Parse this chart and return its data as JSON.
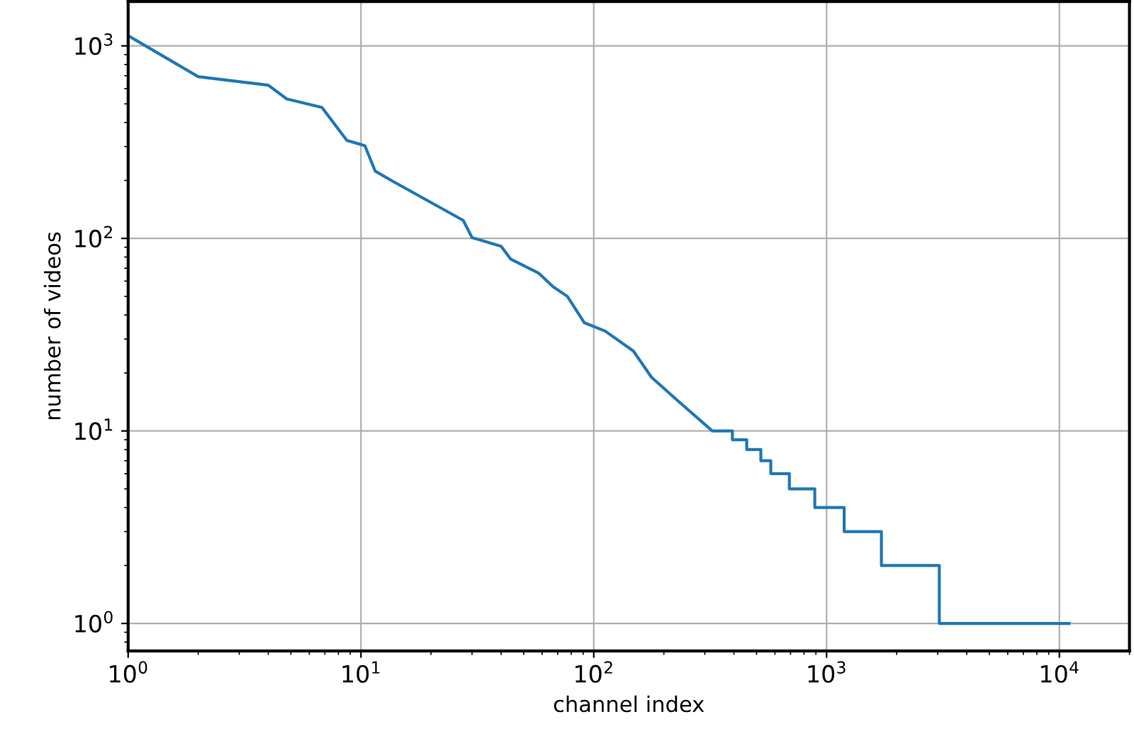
{
  "chart_data": {
    "type": "line",
    "xlabel": "channel index",
    "ylabel": "number of videos",
    "log": "xy",
    "grid": true,
    "marker": "none",
    "line_style": "solid",
    "xlim": [
      1,
      20000
    ],
    "ylim": [
      0.72,
      1700
    ],
    "xticks": [
      {
        "value": 1,
        "label": "10$^{0}$"
      },
      {
        "value": 10,
        "label": "10$^{1}$"
      },
      {
        "value": 100,
        "label": "10$^{2}$"
      },
      {
        "value": 1000,
        "label": "10$^{3}$"
      },
      {
        "value": 10000,
        "label": "10$^{4}$"
      }
    ],
    "yticks": [
      {
        "value": 1,
        "label": "10$^{0}$"
      },
      {
        "value": 10,
        "label": "10$^{1}$"
      },
      {
        "value": 100,
        "label": "10$^{2}$"
      },
      {
        "value": 1000,
        "label": "10$^{3}$"
      }
    ],
    "series": [
      {
        "color": "#1f77b4",
        "x": [
          1,
          2,
          4,
          4.8,
          6.8,
          8.7,
          10.4,
          11.5,
          13.6,
          27.5,
          30,
          40,
          44,
          58,
          67,
          77,
          91,
          112,
          148,
          177,
          235,
          323,
          394,
          394,
          454,
          454,
          522,
          522,
          576,
          576,
          692,
          692,
          890,
          890,
          1190,
          1190,
          1720,
          1720,
          3050,
          3050,
          11000
        ],
        "values": [
          1130,
          692,
          625,
          530,
          479,
          323,
          303,
          224,
          199,
          124,
          101,
          91,
          78,
          66,
          56,
          50,
          36.5,
          33,
          26,
          19,
          14,
          10,
          10,
          9,
          9,
          8,
          8,
          7,
          7,
          6,
          6,
          5,
          5,
          4,
          4,
          3,
          3,
          2,
          2,
          1,
          1
        ]
      }
    ]
  }
}
